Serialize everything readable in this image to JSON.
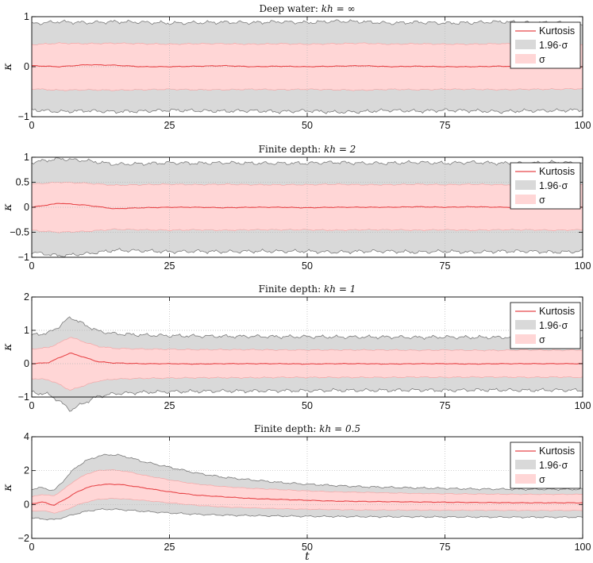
{
  "chart_data": [
    {
      "type": "area",
      "title": "Deep water: kh = ∞",
      "title_prefix": "Deep water: ",
      "title_math": "kh = ∞",
      "xlabel": "",
      "ylabel": "κ",
      "xlim": [
        0,
        100
      ],
      "ylim": [
        -1,
        1
      ],
      "xticks": [
        0,
        25,
        50,
        75,
        100
      ],
      "yticks": [
        -1,
        0,
        1
      ],
      "ytick_labels": [
        "−1",
        "0",
        "1"
      ],
      "x_knots": [
        0,
        5,
        10,
        15,
        20,
        25,
        30,
        35,
        40,
        45,
        50,
        55,
        60,
        65,
        70,
        75,
        80,
        85,
        90,
        95,
        100
      ],
      "series": [
        {
          "name": "Kurtosis",
          "values": [
            0.02,
            0.0,
            0.04,
            0.03,
            0.0,
            0.0,
            0.01,
            0.02,
            0.0,
            0.01,
            0.0,
            0.01,
            0.02,
            0.0,
            0.01,
            0.0,
            0.0,
            0.01,
            0.0,
            0.01,
            0.0
          ]
        },
        {
          "name": "σ",
          "values": [
            0.44,
            0.47,
            0.46,
            0.47,
            0.46,
            0.45,
            0.46,
            0.46,
            0.45,
            0.46,
            0.45,
            0.46,
            0.47,
            0.45,
            0.46,
            0.45,
            0.45,
            0.46,
            0.45,
            0.45,
            0.44
          ]
        },
        {
          "name": "1.96·σ",
          "values": [
            0.86,
            0.9,
            0.88,
            0.9,
            0.89,
            0.87,
            0.88,
            0.89,
            0.88,
            0.9,
            0.88,
            0.91,
            0.9,
            0.87,
            0.89,
            0.87,
            0.88,
            0.9,
            0.88,
            0.88,
            0.86
          ]
        }
      ],
      "legend": {
        "position": "top-right",
        "entries": [
          "Kurtosis",
          "1.96·σ",
          "σ"
        ]
      }
    },
    {
      "type": "area",
      "title": "Finite depth: kh = 2",
      "title_prefix": "Finite depth: ",
      "title_math": "kh = 2",
      "xlabel": "",
      "ylabel": "κ",
      "xlim": [
        0,
        100
      ],
      "ylim": [
        -1,
        1
      ],
      "xticks": [
        0,
        25,
        50,
        75,
        100
      ],
      "yticks": [
        -1,
        -0.5,
        0,
        0.5,
        1
      ],
      "ytick_labels": [
        "−1",
        "−0.5",
        "0",
        "0.5",
        "1"
      ],
      "x_knots": [
        0,
        5,
        10,
        15,
        20,
        25,
        30,
        35,
        40,
        45,
        50,
        55,
        60,
        65,
        70,
        75,
        80,
        85,
        90,
        95,
        100
      ],
      "series": [
        {
          "name": "Kurtosis",
          "values": [
            0.0,
            0.08,
            0.04,
            -0.03,
            -0.01,
            0.0,
            0.0,
            -0.01,
            0.0,
            0.0,
            -0.01,
            0.0,
            0.0,
            0.0,
            0.01,
            0.0,
            0.01,
            0.0,
            0.0,
            0.01,
            0.0
          ]
        },
        {
          "name": "σ",
          "values": [
            0.46,
            0.5,
            0.48,
            0.44,
            0.45,
            0.46,
            0.45,
            0.46,
            0.45,
            0.45,
            0.45,
            0.46,
            0.45,
            0.45,
            0.46,
            0.45,
            0.46,
            0.45,
            0.45,
            0.46,
            0.45
          ]
        },
        {
          "name": "1.96·σ",
          "values": [
            0.9,
            0.97,
            0.93,
            0.86,
            0.87,
            0.89,
            0.88,
            0.89,
            0.88,
            0.88,
            0.88,
            0.9,
            0.88,
            0.88,
            0.9,
            0.88,
            0.9,
            0.88,
            0.88,
            0.9,
            0.88
          ]
        }
      ],
      "legend": {
        "position": "top-right",
        "entries": [
          "Kurtosis",
          "1.96·σ",
          "σ"
        ]
      }
    },
    {
      "type": "area",
      "title": "Finite depth: kh = 1",
      "title_prefix": "Finite depth: ",
      "title_math": "kh = 1",
      "xlabel": "",
      "ylabel": "κ",
      "xlim": [
        0,
        100
      ],
      "ylim": [
        -1,
        2
      ],
      "xticks": [
        0,
        25,
        50,
        75,
        100
      ],
      "yticks": [
        -1,
        0,
        1,
        2
      ],
      "ytick_labels": [
        "−1",
        "0",
        "1",
        "2"
      ],
      "x_knots": [
        0,
        3,
        5,
        7,
        9,
        12,
        15,
        20,
        25,
        30,
        35,
        40,
        45,
        50,
        55,
        60,
        65,
        70,
        75,
        80,
        85,
        90,
        95,
        100
      ],
      "series": [
        {
          "name": "Kurtosis",
          "values": [
            0.0,
            0.03,
            0.18,
            0.32,
            0.22,
            0.06,
            0.02,
            0.0,
            0.0,
            -0.01,
            0.0,
            0.0,
            0.0,
            -0.01,
            0.0,
            0.0,
            -0.01,
            0.0,
            0.0,
            -0.01,
            0.0,
            0.0,
            0.0,
            0.0
          ]
        },
        {
          "name": "σ",
          "values": [
            0.44,
            0.48,
            0.62,
            0.8,
            0.68,
            0.52,
            0.46,
            0.44,
            0.43,
            0.42,
            0.42,
            0.42,
            0.41,
            0.41,
            0.41,
            0.41,
            0.41,
            0.4,
            0.41,
            0.4,
            0.4,
            0.41,
            0.4,
            0.41
          ]
        },
        {
          "name": "1.96·σ",
          "values": [
            0.86,
            0.92,
            1.12,
            1.4,
            1.22,
            0.98,
            0.9,
            0.86,
            0.84,
            0.83,
            0.82,
            0.82,
            0.81,
            0.81,
            0.8,
            0.8,
            0.8,
            0.79,
            0.8,
            0.79,
            0.79,
            0.8,
            0.79,
            0.8
          ]
        }
      ],
      "legend": {
        "position": "top-right",
        "entries": [
          "Kurtosis",
          "1.96·σ",
          "σ"
        ]
      }
    },
    {
      "type": "area",
      "title": "Finite depth: kh = 0.5",
      "title_prefix": "Finite depth: ",
      "title_math": "kh = 0.5",
      "xlabel": "t",
      "ylabel": "κ",
      "xlim": [
        0,
        100
      ],
      "ylim": [
        -2,
        4
      ],
      "xticks": [
        0,
        25,
        50,
        75,
        100
      ],
      "yticks": [
        -2,
        0,
        2,
        4
      ],
      "ytick_labels": [
        "−2",
        "0",
        "2",
        "4"
      ],
      "x_knots": [
        0,
        2,
        4,
        6,
        8,
        10,
        12,
        14,
        16,
        18,
        20,
        25,
        30,
        35,
        40,
        45,
        50,
        55,
        60,
        70,
        80,
        90,
        100
      ],
      "series": [
        {
          "name": "Kurtosis",
          "values": [
            0.05,
            0.15,
            -0.05,
            0.3,
            0.7,
            1.0,
            1.15,
            1.2,
            1.18,
            1.1,
            1.0,
            0.75,
            0.55,
            0.45,
            0.35,
            0.3,
            0.25,
            0.2,
            0.18,
            0.15,
            0.12,
            0.1,
            0.1
          ]
        },
        {
          "name": "σ_upper",
          "values": [
            0.45,
            0.6,
            0.5,
            0.95,
            1.45,
            1.8,
            2.0,
            2.05,
            2.0,
            1.9,
            1.75,
            1.45,
            1.2,
            1.05,
            0.95,
            0.88,
            0.8,
            0.75,
            0.72,
            0.65,
            0.62,
            0.6,
            0.6
          ]
        },
        {
          "name": "σ_lower",
          "values": [
            -0.4,
            -0.35,
            -0.5,
            -0.35,
            -0.05,
            0.15,
            0.3,
            0.35,
            0.35,
            0.3,
            0.25,
            0.1,
            -0.05,
            -0.15,
            -0.2,
            -0.25,
            -0.28,
            -0.3,
            -0.32,
            -0.33,
            -0.34,
            -0.35,
            -0.35
          ]
        },
        {
          "name": "1.96σ_upper",
          "values": [
            0.9,
            1.0,
            0.8,
            1.5,
            2.2,
            2.6,
            2.85,
            2.95,
            2.9,
            2.75,
            2.55,
            2.2,
            1.85,
            1.6,
            1.45,
            1.3,
            1.2,
            1.12,
            1.05,
            0.98,
            0.92,
            0.9,
            0.9
          ]
        },
        {
          "name": "1.96σ_lower",
          "values": [
            -0.8,
            -0.85,
            -0.9,
            -0.75,
            -0.55,
            -0.4,
            -0.3,
            -0.28,
            -0.3,
            -0.35,
            -0.4,
            -0.5,
            -0.58,
            -0.63,
            -0.66,
            -0.68,
            -0.7,
            -0.71,
            -0.72,
            -0.73,
            -0.74,
            -0.75,
            -0.75
          ]
        }
      ],
      "legend": {
        "position": "top-right",
        "entries": [
          "Kurtosis",
          "1.96·σ",
          "σ"
        ]
      }
    }
  ],
  "colors": {
    "kurtosis_line": "#e8474a",
    "sigma_fill": "#ffd6d6",
    "sigma_edge": "#f4a6a6",
    "conf_fill": "#d9d9d9",
    "conf_edge": "#7a7a7a",
    "grid": "#b8b8b8",
    "axis": "#000000"
  }
}
